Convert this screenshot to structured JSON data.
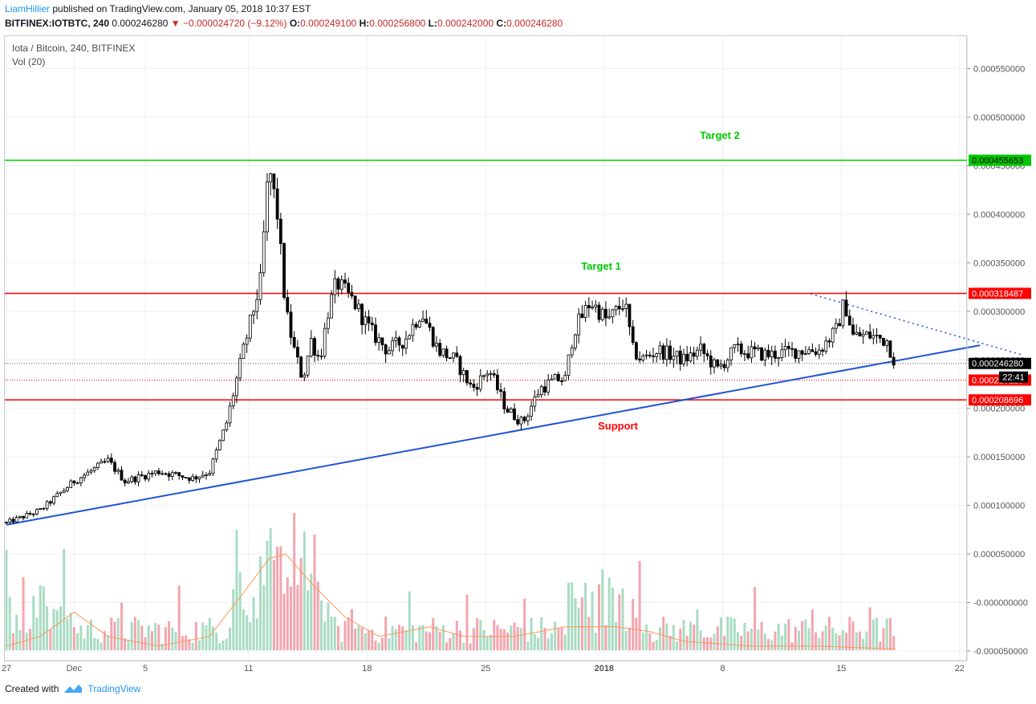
{
  "header": {
    "username": "LiamHillier",
    "published_text": "published on TradingView.com, January 05, 2018 10:37 EST",
    "symbol_line": "BITFINEX:IOTBTC, 240",
    "last": "0.000246280",
    "change": "−0.000024720 (−9.12%)",
    "o_label": "O:",
    "o_value": "0.000249100",
    "h_label": "H:",
    "h_value": "0.000256800",
    "l_label": "L:",
    "l_value": "0.000242000",
    "c_label": "C:",
    "c_value": "0.000246280"
  },
  "legend": {
    "symbol": "Iota / Bitcoin, 240, BITFINEX",
    "volume": "Vol (20)"
  },
  "footer": {
    "created_with": "Created with",
    "brand": "TradingView"
  },
  "colors": {
    "candle": "#000000",
    "volume_up": "#a9dcc3",
    "volume_down": "#f4a5ae",
    "volume_ma": "#f79a5a",
    "target_green": "#00c800",
    "resistance_red": "#ff0000",
    "trendline_blue": "#1e53d6"
  },
  "chart_data": {
    "type": "candlestick",
    "symbol": "IOTBTC",
    "exchange": "BITFINEX",
    "interval": "240",
    "x_tick_labels": [
      "27",
      "Dec",
      "5",
      "11",
      "18",
      "25",
      "2018",
      "8",
      "15",
      "22"
    ],
    "y_tick_labels": [
      "0.000550000",
      "0.000500000",
      "0.000450000",
      "0.000400000",
      "0.000350000",
      "0.000300000",
      "0.000250000",
      "0.000200000",
      "0.000150000",
      "0.000100000",
      "0.000050000",
      "-0.000000000",
      "-0.000050000"
    ],
    "ylim": [
      -6e-05,
      0.00059
    ],
    "price_path": [
      [
        0,
        8.2e-05
      ],
      [
        2,
        9.5e-05
      ],
      [
        4,
        0.000125
      ],
      [
        6,
        0.000146
      ],
      [
        7,
        0.000125
      ],
      [
        9,
        0.000135
      ],
      [
        11,
        0.000128
      ],
      [
        12,
        0.000135
      ],
      [
        13,
        0.000185
      ],
      [
        14,
        0.00026
      ],
      [
        15,
        0.00033
      ],
      [
        15.5,
        0.00045
      ],
      [
        16,
        0.0004
      ],
      [
        16.5,
        0.0003
      ],
      [
        17,
        0.00026
      ],
      [
        17.5,
        0.00023
      ],
      [
        18,
        0.00027
      ],
      [
        18.5,
        0.00025
      ],
      [
        19,
        0.0003
      ],
      [
        19.5,
        0.00033
      ],
      [
        20.5,
        0.00031
      ],
      [
        21.5,
        0.00028
      ],
      [
        22.5,
        0.00026
      ],
      [
        23.5,
        0.00027
      ],
      [
        24.5,
        0.0003
      ],
      [
        25.5,
        0.00026
      ],
      [
        26.5,
        0.00025
      ],
      [
        27.5,
        0.00022
      ],
      [
        28.5,
        0.00024
      ],
      [
        29.5,
        0.0002
      ],
      [
        30.5,
        0.000185
      ],
      [
        31.5,
        0.00022
      ],
      [
        32.5,
        0.00023
      ],
      [
        33,
        0.00023
      ],
      [
        33.5,
        0.00028
      ],
      [
        34.5,
        0.00031
      ],
      [
        35.5,
        0.00029
      ],
      [
        36.5,
        0.00031
      ],
      [
        37,
        0.00026
      ],
      [
        37.5,
        0.00025
      ],
      [
        38.5,
        0.00026
      ],
      [
        40,
        0.00025
      ],
      [
        41,
        0.00026
      ],
      [
        42,
        0.00024
      ],
      [
        43,
        0.00026
      ],
      [
        45,
        0.000255
      ],
      [
        47,
        0.00026
      ],
      [
        48,
        0.00026
      ],
      [
        49,
        0.00028
      ],
      [
        49.5,
        0.00031
      ],
      [
        50,
        0.000275
      ],
      [
        51,
        0.000275
      ],
      [
        52,
        0.00027
      ],
      [
        52.5,
        0.000246
      ]
    ],
    "volume_ma_path": [
      [
        0,
        -4.5e-05
      ],
      [
        2,
        -3.5e-05
      ],
      [
        4,
        -1e-05
      ],
      [
        6,
        -3.5e-05
      ],
      [
        9,
        -4.5e-05
      ],
      [
        12,
        -3.5e-05
      ],
      [
        14,
        1e-05
      ],
      [
        15.5,
        4.5e-05
      ],
      [
        16.5,
        5e-05
      ],
      [
        18,
        2e-05
      ],
      [
        20,
        -1.5e-05
      ],
      [
        22,
        -3.5e-05
      ],
      [
        25,
        -2.5e-05
      ],
      [
        27,
        -3.5e-05
      ],
      [
        30,
        -3.5e-05
      ],
      [
        33,
        -2.5e-05
      ],
      [
        36,
        -2.5e-05
      ],
      [
        38,
        -3e-05
      ],
      [
        40,
        -4e-05
      ],
      [
        44,
        -4.5e-05
      ],
      [
        48,
        -4.5e-05
      ],
      [
        52.5,
        -4.8e-05
      ]
    ],
    "horizontal_levels": [
      {
        "price": 0.000455653,
        "label": "0.000455653",
        "style": "solid",
        "color": "#00c800"
      },
      {
        "price": 0.000318487,
        "label": "0.000318487",
        "style": "solid",
        "color": "#ff0000"
      },
      {
        "price": 0.00024628,
        "label": "0.000246280",
        "style": "dotted",
        "color": "#555555"
      },
      {
        "price": 0.000229129,
        "label": "0.000229129",
        "style": "dotted",
        "color": "#ff0000"
      },
      {
        "price": 0.000208696,
        "label": "0.000208696",
        "style": "solid",
        "color": "#ff0000"
      }
    ],
    "countdown_label": "22:41",
    "annotations": [
      {
        "text": "Target 2",
        "color": "#00c800"
      },
      {
        "text": "Target 1",
        "color": "#00c800"
      },
      {
        "text": "Support",
        "color": "#ff0000"
      }
    ],
    "trendlines": [
      {
        "from": [
          0,
          8e-05
        ],
        "to": [
          57.5,
          0.000265
        ],
        "style": "solid",
        "color": "#1e53d6"
      },
      {
        "from": [
          47.5,
          0.000318
        ],
        "to": [
          60,
          0.000255
        ],
        "style": "dotted",
        "color": "#1e53d6"
      }
    ],
    "grid": true
  }
}
